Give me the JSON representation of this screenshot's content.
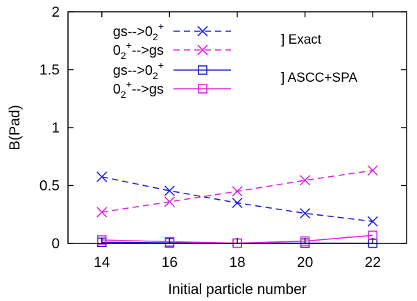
{
  "chart_data": {
    "type": "line",
    "title": "",
    "xlabel": "Initial particle number",
    "ylabel": "B(Pad)",
    "xlim": [
      13,
      23
    ],
    "ylim": [
      0,
      2
    ],
    "xticks": [
      "14",
      "16",
      "18",
      "20",
      "22"
    ],
    "yticks": [
      "0",
      "0.5",
      "1",
      "1.5",
      "2"
    ],
    "grid": false,
    "legend_position": "top-left",
    "series": [
      {
        "name": "gs-->0_2^+",
        "group": "Exact",
        "color": "#1f1fd4",
        "style": "dashed",
        "marker": "cross",
        "x": [
          14,
          16,
          18,
          20,
          22
        ],
        "y": [
          0.575,
          0.455,
          0.35,
          0.26,
          0.19
        ]
      },
      {
        "name": "0_2^+-->gs",
        "group": "Exact",
        "color": "#e020e0",
        "style": "dashed",
        "marker": "cross",
        "x": [
          14,
          16,
          18,
          20,
          22
        ],
        "y": [
          0.27,
          0.36,
          0.45,
          0.545,
          0.63
        ]
      },
      {
        "name": "gs-->0_2^+",
        "group": "ASCC+SPA",
        "color": "#1f1fd4",
        "style": "solid",
        "marker": "square",
        "x": [
          14,
          16,
          18,
          20,
          22
        ],
        "y": [
          0.01,
          0.005,
          0.002,
          0.003,
          0.002
        ]
      },
      {
        "name": "0_2^+-->gs",
        "group": "ASCC+SPA",
        "color": "#e020e0",
        "style": "solid",
        "marker": "square",
        "x": [
          14,
          16,
          18,
          20,
          22
        ],
        "y": [
          0.03,
          0.015,
          0.002,
          0.02,
          0.07
        ]
      }
    ],
    "legend_entries": [
      {
        "main": "gs-->0",
        "sub": "2",
        "sup": "+",
        "tail": ""
      },
      {
        "main": "0",
        "sub": "2",
        "sup": "+",
        "tail": "-->gs"
      },
      {
        "main": "gs-->0",
        "sub": "2",
        "sup": "+",
        "tail": ""
      },
      {
        "main": "0",
        "sub": "2",
        "sup": "+",
        "tail": "-->gs"
      }
    ],
    "annotations": [
      "] Exact",
      "] ASCC+SPA"
    ]
  }
}
